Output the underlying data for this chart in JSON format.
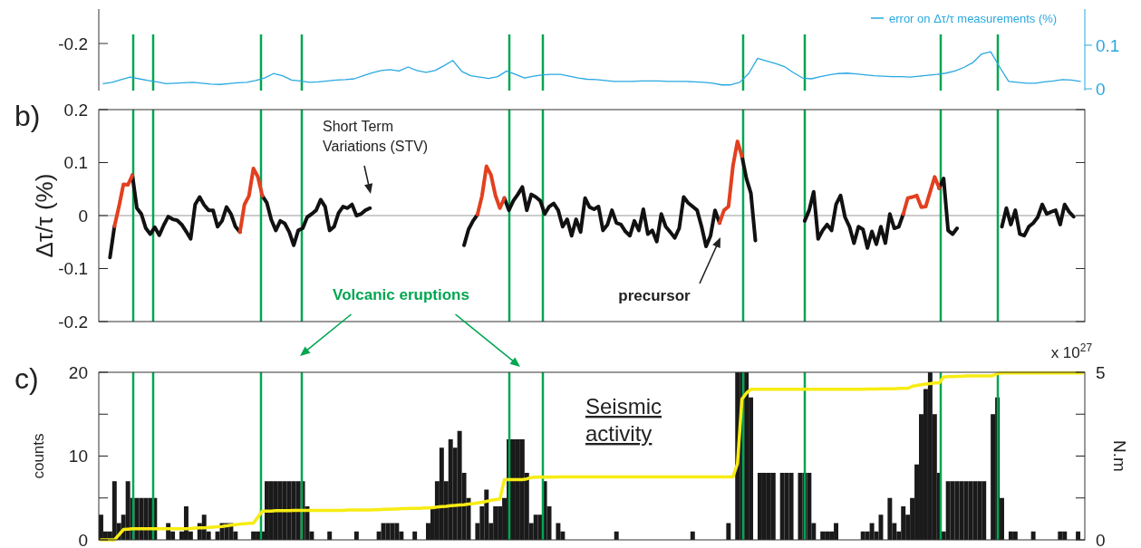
{
  "chart_data": [
    {
      "type": "line",
      "ylim": [
        -0.004,
        0.183
      ],
      "yticks": [
        0,
        0.1
      ],
      "tick_labels": "y",
      "legend": "top right",
      "categories": [
        null,
        null,
        null,
        null,
        null,
        null,
        null,
        null,
        null,
        null,
        null,
        null,
        null,
        null,
        null,
        null,
        null,
        null,
        null,
        null,
        null,
        null,
        null,
        null,
        null,
        null,
        null,
        null,
        null,
        null,
        null,
        null,
        null,
        null,
        null,
        null,
        null,
        null,
        null,
        null,
        null,
        null,
        null,
        null,
        null,
        null,
        null,
        null,
        null,
        null,
        null,
        null,
        null,
        null,
        null,
        null,
        null,
        null,
        null,
        null,
        null,
        null,
        null,
        null,
        null,
        null,
        null,
        null,
        null,
        null,
        null,
        null,
        null,
        null,
        null,
        null,
        null,
        null,
        null,
        null,
        null,
        null,
        null,
        null,
        null,
        null,
        null,
        null,
        null,
        null,
        null,
        null,
        null,
        null,
        null,
        null,
        null,
        null,
        null,
        null,
        null,
        null,
        null,
        null,
        null,
        null,
        null,
        null,
        null,
        null
      ],
      "series": [
        {
          "name": "error on Δτ/τ measurements (%)",
          "color": "#29a8e0",
          "values": [
            0.012,
            0.015,
            0.021,
            0.027,
            0.023,
            0.019,
            0.016,
            0.012,
            0.013,
            0.014,
            0.015,
            0.013,
            0.011,
            0.01,
            0.012,
            0.014,
            0.015,
            0.019,
            0.025,
            0.035,
            0.03,
            0.02,
            0.018,
            0.015,
            0.016,
            0.018,
            0.02,
            0.021,
            0.023,
            0.03,
            0.037,
            0.042,
            0.044,
            0.041,
            0.05,
            0.042,
            0.038,
            0.042,
            0.053,
            0.065,
            0.04,
            0.03,
            0.027,
            0.024,
            0.028,
            0.041,
            0.033,
            0.025,
            0.029,
            0.032,
            0.033,
            0.033,
            0.029,
            0.025,
            0.022,
            0.021,
            0.019,
            0.017,
            0.017,
            0.017,
            0.018,
            0.018,
            0.018,
            0.017,
            0.017,
            0.017,
            0.016,
            0.015,
            0.013,
            0.009,
            0.009,
            0.015,
            0.035,
            0.07,
            0.064,
            0.058,
            0.051,
            0.037,
            0.025,
            0.023,
            0.028,
            0.032,
            0.035,
            0.036,
            0.034,
            0.032,
            0.03,
            0.029,
            0.028,
            0.028,
            0.027,
            0.029,
            0.031,
            0.033,
            0.036,
            0.041,
            0.049,
            0.06,
            0.08,
            0.085,
            0.05,
            0.017,
            0.015,
            0.013,
            0.013,
            0.016,
            0.018,
            0.021,
            0.02,
            0.017
          ]
        }
      ],
      "annotations": [
        "-0.2"
      ]
    },
    {
      "type": "line",
      "title": "b)",
      "ylabel": "Δτ/τ (%)",
      "ylim": [
        -0.2,
        0.2
      ],
      "yticks": [
        -0.2,
        -0.1,
        0,
        0.1,
        0.2
      ],
      "tick_labels": "y",
      "categories": [
        null,
        null,
        null,
        null,
        null,
        null,
        null,
        null,
        null,
        null,
        null,
        null,
        null,
        null,
        null,
        null,
        null,
        null,
        null,
        null,
        null,
        null,
        null,
        null,
        null,
        null,
        null,
        null,
        null,
        null,
        null,
        null,
        null,
        null,
        null,
        null,
        null,
        null,
        null,
        null,
        null,
        null,
        null,
        null,
        null,
        null,
        null,
        null,
        null,
        null,
        null,
        null,
        null,
        null,
        null,
        null,
        null,
        null,
        null,
        null,
        null,
        null,
        null,
        null,
        null,
        null,
        null,
        null,
        null,
        null,
        null,
        null,
        null,
        null,
        null,
        null,
        null,
        null,
        null,
        null,
        null,
        null,
        null,
        null,
        null,
        null,
        null,
        null,
        null,
        null,
        null,
        null,
        null,
        null,
        null,
        null,
        null,
        null,
        null,
        null,
        null,
        null,
        null,
        null,
        null,
        null,
        null,
        null,
        null,
        null,
        null,
        null,
        null,
        null,
        null,
        null,
        null,
        null,
        null,
        null,
        null,
        null,
        null,
        null,
        null,
        null,
        null,
        null,
        null,
        null,
        null,
        null,
        null,
        null,
        null,
        null,
        null,
        null,
        null,
        null,
        null,
        null,
        null,
        null,
        null,
        null,
        null,
        null,
        null,
        null,
        null,
        null,
        null,
        null,
        null,
        null,
        null,
        null,
        null,
        null,
        null,
        null,
        null,
        null,
        null,
        null,
        null,
        null,
        null,
        null,
        null,
        null,
        null,
        null,
        null,
        null,
        null,
        null,
        null,
        null,
        null,
        null,
        null,
        null,
        null,
        null,
        null,
        null,
        null,
        null,
        null,
        null,
        null,
        null,
        null,
        null,
        null,
        null,
        null,
        null,
        null,
        null,
        null,
        null,
        null,
        null,
        null,
        null,
        null,
        null,
        null,
        null,
        null,
        null,
        null,
        null,
        null,
        null,
        null,
        null
      ],
      "series": [
        {
          "color": "#111111",
          "values": [
            null,
            null,
            -0.079,
            -0.02,
            null,
            null,
            null,
            0.076,
            0.014,
            0.003,
            -0.024,
            -0.035,
            -0.022,
            -0.037,
            -0.018,
            -0.002,
            -0.007,
            -0.009,
            -0.017,
            -0.03,
            -0.044,
            0.021,
            0.035,
            0.02,
            0.01,
            0.01,
            -0.021,
            -0.01,
            0.016,
            0.003,
            -0.021,
            -0.031,
            null,
            null,
            null,
            null,
            0.037,
            0.024,
            -0.008,
            -0.028,
            -0.01,
            -0.015,
            -0.031,
            -0.056,
            -0.028,
            -0.024,
            -0.003,
            0.003,
            0.01,
            0.03,
            0.017,
            -0.028,
            -0.021,
            0.005,
            0.017,
            0.014,
            0.021,
            0.0,
            0.003,
            0.01,
            0.014,
            null,
            null,
            null,
            null,
            null,
            null,
            null,
            null,
            null,
            null,
            null,
            null,
            null,
            null,
            null,
            null,
            null,
            null,
            null,
            null,
            -0.056,
            -0.026,
            -0.01,
            0.002,
            null,
            null,
            null,
            null,
            null,
            0.033,
            0.01,
            0.028,
            0.04,
            0.054,
            0.01,
            0.04,
            0.035,
            0.028,
            0.003,
            0.017,
            0.023,
            0.01,
            -0.021,
            -0.007,
            -0.038,
            -0.007,
            -0.031,
            0.033,
            0.016,
            0.012,
            0.017,
            -0.028,
            -0.017,
            0.01,
            -0.014,
            -0.017,
            -0.03,
            -0.038,
            -0.01,
            -0.028,
            0.012,
            -0.035,
            -0.028,
            -0.049,
            0.003,
            -0.021,
            -0.031,
            -0.042,
            -0.024,
            0.035,
            0.024,
            0.017,
            0.01,
            -0.021,
            -0.058,
            -0.038,
            0.01,
            -0.014,
            null,
            null,
            null,
            null,
            0.112,
            0.07,
            0.042,
            -0.047,
            null,
            null,
            null,
            null,
            null,
            null,
            null,
            null,
            null,
            null,
            -0.01,
            0.01,
            0.045,
            -0.044,
            -0.028,
            -0.017,
            -0.028,
            0.021,
            0.038,
            -0.003,
            -0.021,
            -0.052,
            -0.021,
            -0.026,
            -0.061,
            -0.03,
            -0.054,
            -0.021,
            -0.052,
            0.003,
            -0.024,
            -0.021,
            0.003,
            null,
            null,
            null,
            null,
            null,
            null,
            null,
            0.052,
            0.07,
            -0.028,
            -0.035,
            -0.024,
            null,
            null,
            null,
            null,
            null,
            null,
            null,
            null,
            null,
            -0.021,
            0.014,
            -0.017,
            0.01,
            -0.035,
            -0.038,
            -0.021,
            -0.014,
            -0.003,
            0.021,
            0.003,
            0.007,
            0.01,
            -0.017,
            0.021,
            0.007,
            -0.002,
            null,
            null
          ]
        },
        {
          "color": "#e2401f",
          "values": [
            null,
            null,
            null,
            -0.02,
            0.017,
            0.059,
            0.058,
            0.076,
            null,
            null,
            null,
            null,
            null,
            null,
            null,
            null,
            null,
            null,
            null,
            null,
            null,
            null,
            null,
            null,
            null,
            null,
            null,
            null,
            null,
            null,
            null,
            -0.031,
            0.021,
            0.037,
            0.089,
            0.073,
            0.037,
            null,
            null,
            null,
            null,
            null,
            null,
            null,
            null,
            null,
            null,
            null,
            null,
            null,
            null,
            null,
            null,
            null,
            null,
            null,
            null,
            null,
            null,
            null,
            null,
            null,
            null,
            null,
            null,
            null,
            null,
            null,
            null,
            null,
            null,
            null,
            null,
            null,
            null,
            null,
            null,
            null,
            null,
            null,
            null,
            null,
            null,
            null,
            0.002,
            0.037,
            0.093,
            0.077,
            0.038,
            0.014,
            0.033,
            null,
            null,
            null,
            null,
            null,
            null,
            null,
            null,
            null,
            null,
            null,
            null,
            null,
            null,
            null,
            null,
            null,
            null,
            null,
            null,
            null,
            null,
            null,
            null,
            null,
            null,
            null,
            null,
            null,
            null,
            null,
            null,
            null,
            null,
            null,
            null,
            null,
            null,
            null,
            null,
            null,
            null,
            null,
            null,
            null,
            null,
            null,
            -0.014,
            0.01,
            0.017,
            0.094,
            0.14,
            0.112,
            null,
            null,
            null,
            null,
            null,
            null,
            null,
            null,
            null,
            null,
            null,
            null,
            null,
            null,
            null,
            null,
            null,
            null,
            null,
            null,
            null,
            null,
            null,
            null,
            null,
            null,
            null,
            null,
            null,
            null,
            null,
            null,
            null,
            null,
            null,
            0.003,
            0.033,
            0.035,
            0.038,
            0.016,
            0.017,
            0.045,
            0.073,
            0.052,
            null,
            null,
            null,
            null,
            null,
            null,
            null,
            null,
            null,
            null,
            null,
            null,
            null,
            null,
            null,
            null,
            null,
            null,
            null,
            null,
            null,
            null,
            null,
            null,
            null,
            null,
            null,
            null,
            null,
            null,
            null,
            null
          ]
        }
      ],
      "ref_lines": [
        {
          "axis": "y",
          "value": 0,
          "color": "#999999"
        }
      ],
      "annotations": [
        "Short Term Variations (STV)",
        "precursor",
        "Volcanic eruptions"
      ]
    },
    {
      "type": "bar",
      "title": "c)",
      "ylabel": "counts",
      "y2label": "N.m",
      "color": "#1a1a1a",
      "ylim": [
        0,
        20
      ],
      "yticks": [
        0,
        {
          "value": 5,
          "label": null
        },
        10,
        {
          "value": 15,
          "label": null
        },
        20
      ],
      "y2lim": [
        0,
        5
      ],
      "y2ticks": [
        0,
        {
          "value": 1.25,
          "label": null
        },
        {
          "value": 2.5,
          "label": null
        },
        {
          "value": 3.75,
          "label": null
        },
        5
      ],
      "tick_labels": "y",
      "categories": [
        null,
        null,
        null,
        null,
        null,
        null,
        null,
        null,
        null,
        null,
        null,
        null,
        null,
        null,
        null,
        null,
        null,
        null,
        null,
        null,
        null,
        null,
        null,
        null,
        null,
        null,
        null,
        null,
        null,
        null,
        null,
        null,
        null,
        null,
        null,
        null,
        null,
        null,
        null,
        null,
        null,
        null,
        null,
        null,
        null,
        null,
        null,
        null,
        null,
        null,
        null,
        null,
        null,
        null,
        null,
        null,
        null,
        null,
        null,
        null,
        null,
        null,
        null,
        null,
        null,
        null,
        null,
        null,
        null,
        null,
        null,
        null,
        null,
        null,
        null,
        null,
        null,
        null,
        null,
        null,
        null,
        null,
        null,
        null,
        null,
        null,
        null,
        null,
        null,
        null,
        null,
        null,
        null,
        null,
        null,
        null,
        null,
        null,
        null,
        null,
        null,
        null,
        null,
        null,
        null,
        null,
        null,
        null,
        null,
        null,
        null,
        null,
        null,
        null,
        null,
        null,
        null,
        null,
        null,
        null,
        null,
        null,
        null,
        null,
        null,
        null,
        null,
        null,
        null,
        null,
        null,
        null,
        null,
        null,
        null,
        null,
        null,
        null,
        null,
        null,
        null,
        null,
        null,
        null,
        null,
        null,
        null,
        null,
        null,
        null,
        null,
        null,
        null,
        null,
        null,
        null,
        null,
        null,
        null,
        null,
        null,
        null,
        null,
        null,
        null,
        null,
        null,
        null,
        null,
        null,
        null,
        null,
        null,
        null,
        null,
        null,
        null,
        null,
        null,
        null,
        null,
        null,
        null,
        null,
        null,
        null,
        null,
        null,
        null,
        null,
        null,
        null,
        null,
        null,
        null,
        null,
        null,
        null,
        null,
        null,
        null,
        null,
        null,
        null,
        null,
        null,
        null,
        null,
        null,
        null,
        null,
        null,
        null,
        null,
        null,
        null,
        null,
        null,
        null,
        null
      ],
      "values": [
        3,
        1,
        1,
        7,
        2,
        3,
        7,
        5,
        5,
        5,
        5,
        5,
        5,
        0,
        0,
        2,
        1,
        0,
        1,
        4,
        1,
        0,
        2,
        3,
        1,
        0,
        1,
        2,
        2,
        2,
        1,
        0,
        0,
        0,
        1,
        1,
        1,
        7,
        7,
        7,
        7,
        7,
        7,
        7,
        7,
        7,
        4,
        1,
        0,
        0,
        0,
        1,
        0,
        0,
        0,
        0,
        0,
        1,
        0,
        0,
        0,
        0,
        1,
        2,
        2,
        2,
        2,
        1,
        0,
        0,
        1,
        0,
        0,
        2,
        4,
        7,
        11,
        7,
        12,
        11,
        13,
        8,
        5,
        0,
        2,
        4,
        6,
        2,
        4,
        4,
        5,
        12,
        12,
        12,
        12,
        8,
        2,
        3,
        3,
        7,
        4,
        0,
        2,
        1,
        0,
        0,
        0,
        0,
        0,
        0,
        0,
        0,
        0,
        0,
        0,
        1,
        0,
        0,
        0,
        0,
        0,
        0,
        0,
        0,
        0,
        0,
        0,
        0,
        0,
        0,
        0,
        0,
        1,
        0,
        0,
        0,
        0,
        0,
        0,
        0,
        2,
        0,
        20,
        20,
        20,
        17,
        0,
        8,
        8,
        8,
        8,
        0,
        8,
        8,
        8,
        0,
        8,
        8,
        8,
        2,
        0,
        1,
        1,
        1,
        2,
        0,
        0,
        0,
        0,
        0,
        1,
        1,
        2,
        1,
        3,
        0,
        5,
        2,
        1,
        4,
        3,
        5,
        9,
        15,
        18,
        20,
        15,
        8,
        1,
        7,
        7,
        7,
        7,
        7,
        7,
        7,
        7,
        7,
        0,
        15,
        17,
        5,
        0,
        1,
        1,
        0,
        0,
        0,
        1,
        0,
        0,
        0,
        0,
        0,
        1,
        1,
        0,
        0,
        1,
        0
      ],
      "series": [
        {
          "type": "line",
          "axis": "y2",
          "color": "#f7ec13",
          "values": [
            0,
            0,
            0,
            0,
            0.15,
            0.31,
            0.32,
            0.33,
            0.33,
            0.33,
            0.33,
            0.33,
            0.33,
            0.33,
            0.33,
            0.33,
            0.33,
            0.33,
            0.33,
            0.33,
            0.34,
            0.35,
            0.36,
            0.36,
            0.37,
            0.38,
            0.39,
            0.4,
            0.42,
            0.44,
            0.45,
            0.47,
            0.48,
            0.49,
            0.5,
            0.68,
            0.86,
            0.86,
            0.86,
            0.87,
            0.87,
            0.87,
            0.87,
            0.88,
            0.88,
            0.88,
            0.88,
            0.88,
            0.88,
            0.88,
            0.88,
            0.88,
            0.88,
            0.88,
            0.88,
            0.89,
            0.89,
            0.89,
            0.89,
            0.89,
            0.89,
            0.9,
            0.9,
            0.91,
            0.91,
            0.92,
            0.92,
            0.93,
            0.93,
            0.94,
            0.94,
            0.94,
            0.95,
            0.95,
            0.96,
            0.98,
            0.99,
            1.0,
            1.02,
            1.03,
            1.04,
            1.05,
            1.07,
            1.08,
            1.1,
            1.12,
            1.15,
            1.18,
            1.2,
            1.22,
            1.8,
            1.8,
            1.8,
            1.8,
            1.8,
            1.82,
            1.86,
            1.87,
            1.87,
            1.87,
            1.87,
            1.87,
            1.88,
            1.88,
            1.88,
            1.88,
            1.88,
            1.88,
            1.88,
            1.88,
            1.88,
            1.88,
            1.88,
            1.88,
            1.88,
            1.88,
            1.88,
            1.88,
            1.88,
            1.88,
            1.88,
            1.88,
            1.88,
            1.88,
            1.88,
            1.88,
            1.88,
            1.88,
            1.88,
            1.88,
            1.88,
            1.88,
            1.88,
            1.88,
            1.88,
            1.88,
            1.88,
            1.88,
            1.88,
            1.88,
            1.88,
            1.88,
            2.27,
            4.2,
            4.38,
            4.49,
            4.49,
            4.49,
            4.49,
            4.49,
            4.49,
            4.49,
            4.49,
            4.49,
            4.49,
            4.49,
            4.49,
            4.49,
            4.49,
            4.49,
            4.49,
            4.49,
            4.49,
            4.49,
            4.49,
            4.49,
            4.49,
            4.49,
            4.49,
            4.49,
            4.49,
            4.5,
            4.5,
            4.5,
            4.51,
            4.51,
            4.51,
            4.51,
            4.52,
            4.52,
            4.52,
            4.58,
            4.61,
            4.63,
            4.65,
            4.66,
            4.68,
            4.68,
            4.86,
            4.87,
            4.87,
            4.88,
            4.88,
            4.89,
            4.89,
            4.89,
            4.89,
            4.89,
            4.89,
            4.9,
            4.96,
            4.98,
            4.98,
            4.98,
            4.98,
            4.98,
            4.98,
            4.98,
            4.98,
            4.98,
            4.98,
            4.98,
            4.98,
            4.98,
            4.98,
            4.98,
            4.98,
            4.98,
            4.98,
            4.98
          ]
        }
      ],
      "annotations": [
        "Seismic activity",
        "x 10$^{27}$"
      ]
    }
  ]
}
